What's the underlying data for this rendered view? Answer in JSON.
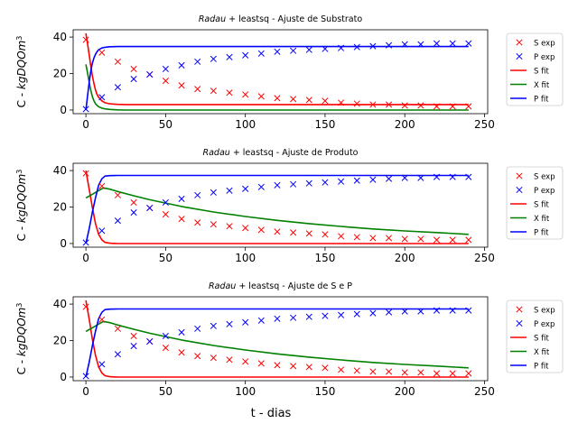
{
  "figure": {
    "xlabel": "t - dias",
    "ylabel": "C - kgDQOm³"
  },
  "colors": {
    "S": "#ff0000",
    "P": "#0000ff",
    "X": "#008000"
  },
  "chart_data": [
    {
      "type": "line",
      "title": "Radau + leastsq - Ajuste de Substrato",
      "title_italic": "Radau",
      "title_rest": " + leastsq - Ajuste de Substrato",
      "xlim": [
        -8,
        252
      ],
      "ylim": [
        -2,
        44
      ],
      "xticks": [
        0,
        50,
        100,
        150,
        200,
        250
      ],
      "yticks": [
        0,
        20,
        40
      ],
      "legend": [
        "S exp",
        "P exp",
        "S fit",
        "X fit",
        "P fit"
      ],
      "series": [
        {
          "name": "S exp",
          "kind": "scatter",
          "color": "#ff0000",
          "x": [
            0,
            10,
            20,
            30,
            40,
            50,
            60,
            70,
            80,
            90,
            100,
            110,
            120,
            130,
            140,
            150,
            160,
            170,
            180,
            190,
            200,
            210,
            220,
            230,
            240
          ],
          "y": [
            38.5,
            31.5,
            26.5,
            22.5,
            19.5,
            16,
            13.5,
            11.5,
            10.5,
            9.5,
            8.5,
            7.5,
            6.5,
            6,
            5.5,
            5,
            4,
            3.5,
            3,
            3,
            2.5,
            2.5,
            2,
            2,
            2
          ]
        },
        {
          "name": "P exp",
          "kind": "scatter",
          "color": "#0000ff",
          "x": [
            0,
            10,
            20,
            30,
            40,
            50,
            60,
            70,
            80,
            90,
            100,
            110,
            120,
            130,
            140,
            150,
            160,
            170,
            180,
            190,
            200,
            210,
            220,
            230,
            240
          ],
          "y": [
            0.5,
            7,
            12.5,
            17,
            19.5,
            22.5,
            24.5,
            26.5,
            28,
            29,
            30,
            31,
            32,
            32.5,
            33,
            33.5,
            34,
            34.5,
            35,
            35.5,
            36,
            36,
            36.5,
            36.5,
            36.5
          ]
        },
        {
          "name": "S fit",
          "kind": "line",
          "color": "#ff0000",
          "x": [
            0,
            1,
            2,
            3,
            4,
            5,
            6,
            7,
            8,
            10,
            12,
            15,
            20,
            25,
            30,
            40,
            60,
            100,
            150,
            240
          ],
          "y": [
            42,
            36.5,
            30.5,
            24.5,
            19,
            14.5,
            11,
            8.5,
            7,
            5,
            4,
            3.4,
            3.1,
            3,
            3,
            3,
            3,
            3,
            3,
            3
          ]
        },
        {
          "name": "X fit",
          "kind": "line",
          "color": "#008000",
          "x": [
            0,
            1,
            2,
            3,
            4,
            5,
            6,
            7,
            8,
            10,
            12,
            15,
            20,
            25,
            30,
            40,
            60,
            100,
            150,
            240
          ],
          "y": [
            25,
            20.5,
            15.5,
            11,
            7.5,
            5,
            3.5,
            2.5,
            1.8,
            1,
            0.6,
            0.3,
            0.1,
            0,
            0,
            0,
            0,
            0,
            0,
            0
          ]
        },
        {
          "name": "P fit",
          "kind": "line",
          "color": "#0000ff",
          "x": [
            0,
            1,
            2,
            3,
            4,
            5,
            6,
            7,
            8,
            10,
            12,
            15,
            20,
            25,
            30,
            40,
            60,
            100,
            150,
            240
          ],
          "y": [
            0,
            7.5,
            15,
            21,
            25.5,
            28.5,
            30.5,
            32,
            33,
            34,
            34.4,
            34.7,
            34.8,
            34.8,
            34.8,
            34.8,
            34.8,
            34.8,
            34.8,
            34.8
          ]
        }
      ]
    },
    {
      "type": "line",
      "title": "Radau + leastsq - Ajuste de Produto",
      "title_italic": "Radau",
      "title_rest": " + leastsq - Ajuste de Produto",
      "xlim": [
        -8,
        252
      ],
      "ylim": [
        -2,
        44
      ],
      "xticks": [
        0,
        50,
        100,
        150,
        200,
        250
      ],
      "yticks": [
        0,
        20,
        40
      ],
      "legend": [
        "S exp",
        "P exp",
        "S fit",
        "X fit",
        "P fit"
      ],
      "series": [
        {
          "name": "S exp",
          "kind": "scatter",
          "color": "#ff0000",
          "x": [
            0,
            10,
            20,
            30,
            40,
            50,
            60,
            70,
            80,
            90,
            100,
            110,
            120,
            130,
            140,
            150,
            160,
            170,
            180,
            190,
            200,
            210,
            220,
            230,
            240
          ],
          "y": [
            38.5,
            31.5,
            26.5,
            22.5,
            19.5,
            16,
            13.5,
            11.5,
            10.5,
            9.5,
            8.5,
            7.5,
            6.5,
            6,
            5.5,
            5,
            4,
            3.5,
            3,
            3,
            2.5,
            2.5,
            2,
            2,
            2
          ]
        },
        {
          "name": "P exp",
          "kind": "scatter",
          "color": "#0000ff",
          "x": [
            0,
            10,
            20,
            30,
            40,
            50,
            60,
            70,
            80,
            90,
            100,
            110,
            120,
            130,
            140,
            150,
            160,
            170,
            180,
            190,
            200,
            210,
            220,
            230,
            240
          ],
          "y": [
            0.5,
            7,
            12.5,
            17,
            19.5,
            22.5,
            24.5,
            26.5,
            28,
            29,
            30,
            31,
            32,
            32.5,
            33,
            33.5,
            34,
            34.5,
            35,
            35.5,
            36,
            36,
            36.5,
            36.5,
            36.5
          ]
        },
        {
          "name": "S fit",
          "kind": "line",
          "color": "#ff0000",
          "x": [
            0,
            2,
            4,
            6,
            8,
            10,
            12,
            15,
            20,
            240
          ],
          "y": [
            40,
            30,
            20,
            11,
            5,
            2,
            0.6,
            0.2,
            0,
            0
          ]
        },
        {
          "name": "X fit",
          "kind": "line",
          "color": "#008000",
          "x": [
            0,
            4,
            8,
            11,
            15,
            20,
            30,
            40,
            60,
            80,
            100,
            120,
            140,
            160,
            180,
            200,
            220,
            240
          ],
          "y": [
            25,
            27,
            29,
            30.5,
            29.8,
            28.5,
            26.2,
            24,
            20.3,
            17.3,
            14.8,
            12.7,
            10.9,
            9.4,
            8,
            6.9,
            6,
            5
          ]
        },
        {
          "name": "P fit",
          "kind": "line",
          "color": "#0000ff",
          "x": [
            0,
            2,
            4,
            6,
            8,
            10,
            12,
            15,
            20,
            240
          ],
          "y": [
            0,
            8,
            17,
            25,
            32,
            35.5,
            37,
            37.2,
            37.3,
            37.3
          ]
        }
      ]
    },
    {
      "type": "line",
      "title": "Radau + leastsq - Ajuste de S e P",
      "title_italic": "Radau",
      "title_rest": " + leastsq - Ajuste de S e P",
      "xlim": [
        -8,
        252
      ],
      "ylim": [
        -2,
        44
      ],
      "xticks": [
        0,
        50,
        100,
        150,
        200,
        250
      ],
      "yticks": [
        0,
        20,
        40
      ],
      "legend": [
        "S exp",
        "P exp",
        "S fit",
        "X fit",
        "P fit"
      ],
      "series": [
        {
          "name": "S exp",
          "kind": "scatter",
          "color": "#ff0000",
          "x": [
            0,
            10,
            20,
            30,
            40,
            50,
            60,
            70,
            80,
            90,
            100,
            110,
            120,
            130,
            140,
            150,
            160,
            170,
            180,
            190,
            200,
            210,
            220,
            230,
            240
          ],
          "y": [
            38.5,
            31.5,
            26.5,
            22.5,
            19.5,
            16,
            13.5,
            11.5,
            10.5,
            9.5,
            8.5,
            7.5,
            6.5,
            6,
            5.5,
            5,
            4,
            3.5,
            3,
            3,
            2.5,
            2.5,
            2,
            2,
            2
          ]
        },
        {
          "name": "P exp",
          "kind": "scatter",
          "color": "#0000ff",
          "x": [
            0,
            10,
            20,
            30,
            40,
            50,
            60,
            70,
            80,
            90,
            100,
            110,
            120,
            130,
            140,
            150,
            160,
            170,
            180,
            190,
            200,
            210,
            220,
            230,
            240
          ],
          "y": [
            0.5,
            7,
            12.5,
            17,
            19.5,
            22.5,
            24.5,
            26.5,
            28,
            29,
            30,
            31,
            32,
            32.5,
            33,
            33.5,
            34,
            34.5,
            35,
            35.5,
            36,
            36,
            36.5,
            36.5,
            36.5
          ]
        },
        {
          "name": "S fit",
          "kind": "line",
          "color": "#ff0000",
          "x": [
            0,
            2,
            4,
            6,
            8,
            10,
            12,
            15,
            20,
            240
          ],
          "y": [
            42,
            32,
            21,
            12,
            5.5,
            2.2,
            0.7,
            0.2,
            0,
            0
          ]
        },
        {
          "name": "X fit",
          "kind": "line",
          "color": "#008000",
          "x": [
            0,
            4,
            8,
            11,
            15,
            20,
            30,
            40,
            60,
            80,
            100,
            120,
            140,
            160,
            180,
            200,
            220,
            240
          ],
          "y": [
            25,
            27,
            29,
            30.5,
            29.8,
            28.5,
            26.2,
            24,
            20.3,
            17.3,
            14.8,
            12.7,
            10.9,
            9.4,
            8,
            6.9,
            6,
            5
          ]
        },
        {
          "name": "P fit",
          "kind": "line",
          "color": "#0000ff",
          "x": [
            0,
            2,
            4,
            6,
            8,
            10,
            12,
            15,
            20,
            240
          ],
          "y": [
            0,
            8,
            17,
            25,
            32,
            35.5,
            37,
            37.2,
            37.3,
            37.3
          ]
        }
      ]
    }
  ]
}
